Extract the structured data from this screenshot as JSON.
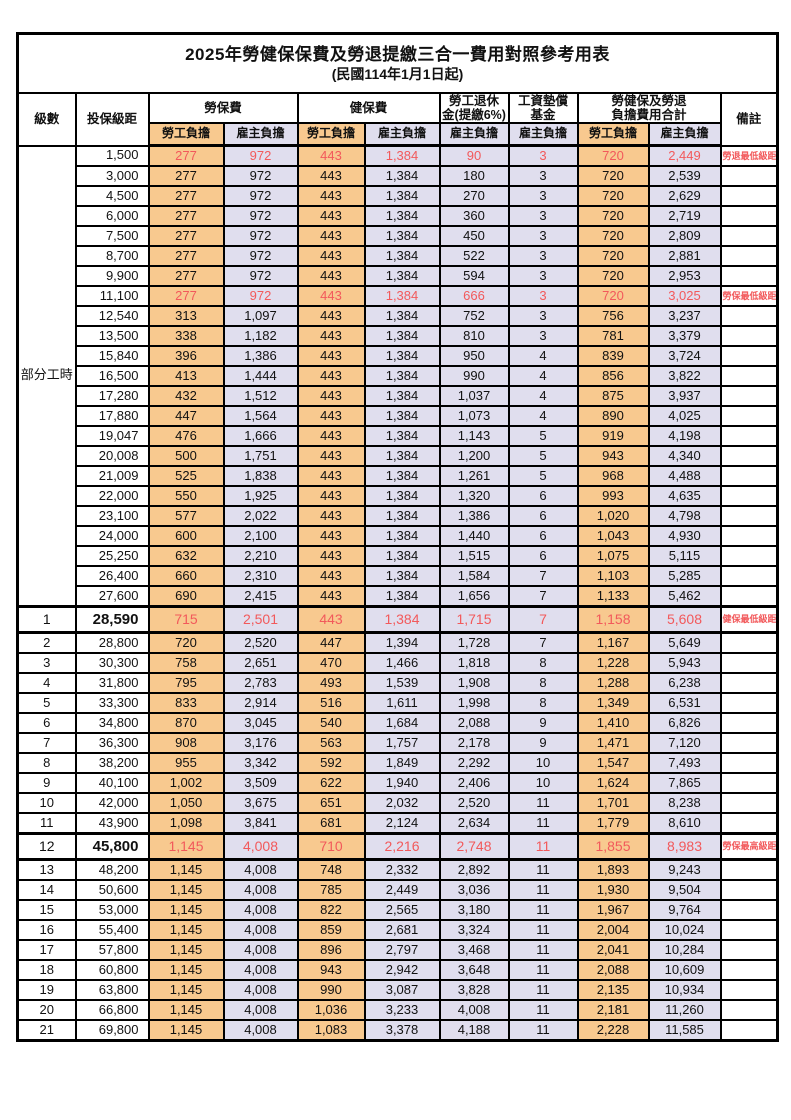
{
  "title": "2025年勞健保保費及勞退提繳三合一費用對照參考用表",
  "subtitle": "(民國114年1月1日起)",
  "columns": {
    "level": "級數",
    "bracket": "投保級距",
    "labor_insurance": "勞保費",
    "health_insurance": "健保費",
    "pension_line1": "勞工退休",
    "pension_line2": "金(提繳6%)",
    "fund_line1": "工資墊償",
    "fund_line2": "基金",
    "total_line1": "勞健保及勞退",
    "total_line2": "負擔費用合計",
    "remark": "備註"
  },
  "sub_columns": {
    "employee": "勞工負擔",
    "employer": "雇主負擔"
  },
  "part_time_label": "部分工時",
  "colors": {
    "employee_share_bg": "#F8C98F",
    "employer_share_bg": "#E0DEEE",
    "highlight_text": "#F2595B",
    "grid": "#000000"
  },
  "rows": [
    {
      "lv": "",
      "br": "1,500",
      "v": [
        "277",
        "972",
        "443",
        "1,384",
        "90",
        "3",
        "720",
        "2,449"
      ],
      "note": "勞退最低級距",
      "red": true,
      "tall": false
    },
    {
      "lv": "",
      "br": "3,000",
      "v": [
        "277",
        "972",
        "443",
        "1,384",
        "180",
        "3",
        "720",
        "2,539"
      ],
      "note": "",
      "red": false,
      "tall": false
    },
    {
      "lv": "",
      "br": "4,500",
      "v": [
        "277",
        "972",
        "443",
        "1,384",
        "270",
        "3",
        "720",
        "2,629"
      ],
      "note": "",
      "red": false,
      "tall": false
    },
    {
      "lv": "",
      "br": "6,000",
      "v": [
        "277",
        "972",
        "443",
        "1,384",
        "360",
        "3",
        "720",
        "2,719"
      ],
      "note": "",
      "red": false,
      "tall": false
    },
    {
      "lv": "",
      "br": "7,500",
      "v": [
        "277",
        "972",
        "443",
        "1,384",
        "450",
        "3",
        "720",
        "2,809"
      ],
      "note": "",
      "red": false,
      "tall": false
    },
    {
      "lv": "",
      "br": "8,700",
      "v": [
        "277",
        "972",
        "443",
        "1,384",
        "522",
        "3",
        "720",
        "2,881"
      ],
      "note": "",
      "red": false,
      "tall": false
    },
    {
      "lv": "",
      "br": "9,900",
      "v": [
        "277",
        "972",
        "443",
        "1,384",
        "594",
        "3",
        "720",
        "2,953"
      ],
      "note": "",
      "red": false,
      "tall": false
    },
    {
      "lv": "",
      "br": "11,100",
      "v": [
        "277",
        "972",
        "443",
        "1,384",
        "666",
        "3",
        "720",
        "3,025"
      ],
      "note": "勞保最低級距",
      "red": true,
      "tall": false
    },
    {
      "lv": "",
      "br": "12,540",
      "v": [
        "313",
        "1,097",
        "443",
        "1,384",
        "752",
        "3",
        "756",
        "3,237"
      ],
      "note": "",
      "red": false,
      "tall": false
    },
    {
      "lv": "",
      "br": "13,500",
      "v": [
        "338",
        "1,182",
        "443",
        "1,384",
        "810",
        "3",
        "781",
        "3,379"
      ],
      "note": "",
      "red": false,
      "tall": false
    },
    {
      "lv": "",
      "br": "15,840",
      "v": [
        "396",
        "1,386",
        "443",
        "1,384",
        "950",
        "4",
        "839",
        "3,724"
      ],
      "note": "",
      "red": false,
      "tall": false
    },
    {
      "lv": "",
      "br": "16,500",
      "v": [
        "413",
        "1,444",
        "443",
        "1,384",
        "990",
        "4",
        "856",
        "3,822"
      ],
      "note": "",
      "red": false,
      "tall": false
    },
    {
      "lv": "",
      "br": "17,280",
      "v": [
        "432",
        "1,512",
        "443",
        "1,384",
        "1,037",
        "4",
        "875",
        "3,937"
      ],
      "note": "",
      "red": false,
      "tall": false
    },
    {
      "lv": "",
      "br": "17,880",
      "v": [
        "447",
        "1,564",
        "443",
        "1,384",
        "1,073",
        "4",
        "890",
        "4,025"
      ],
      "note": "",
      "red": false,
      "tall": false
    },
    {
      "lv": "",
      "br": "19,047",
      "v": [
        "476",
        "1,666",
        "443",
        "1,384",
        "1,143",
        "5",
        "919",
        "4,198"
      ],
      "note": "",
      "red": false,
      "tall": false
    },
    {
      "lv": "",
      "br": "20,008",
      "v": [
        "500",
        "1,751",
        "443",
        "1,384",
        "1,200",
        "5",
        "943",
        "4,340"
      ],
      "note": "",
      "red": false,
      "tall": false
    },
    {
      "lv": "",
      "br": "21,009",
      "v": [
        "525",
        "1,838",
        "443",
        "1,384",
        "1,261",
        "5",
        "968",
        "4,488"
      ],
      "note": "",
      "red": false,
      "tall": false
    },
    {
      "lv": "",
      "br": "22,000",
      "v": [
        "550",
        "1,925",
        "443",
        "1,384",
        "1,320",
        "6",
        "993",
        "4,635"
      ],
      "note": "",
      "red": false,
      "tall": false
    },
    {
      "lv": "",
      "br": "23,100",
      "v": [
        "577",
        "2,022",
        "443",
        "1,384",
        "1,386",
        "6",
        "1,020",
        "4,798"
      ],
      "note": "",
      "red": false,
      "tall": false
    },
    {
      "lv": "",
      "br": "24,000",
      "v": [
        "600",
        "2,100",
        "443",
        "1,384",
        "1,440",
        "6",
        "1,043",
        "4,930"
      ],
      "note": "",
      "red": false,
      "tall": false
    },
    {
      "lv": "",
      "br": "25,250",
      "v": [
        "632",
        "2,210",
        "443",
        "1,384",
        "1,515",
        "6",
        "1,075",
        "5,115"
      ],
      "note": "",
      "red": false,
      "tall": false
    },
    {
      "lv": "",
      "br": "26,400",
      "v": [
        "660",
        "2,310",
        "443",
        "1,384",
        "1,584",
        "7",
        "1,103",
        "5,285"
      ],
      "note": "",
      "red": false,
      "tall": false
    },
    {
      "lv": "",
      "br": "27,600",
      "v": [
        "690",
        "2,415",
        "443",
        "1,384",
        "1,656",
        "7",
        "1,133",
        "5,462"
      ],
      "note": "",
      "red": false,
      "tall": false
    },
    {
      "lv": "1",
      "br": "28,590",
      "v": [
        "715",
        "2,501",
        "443",
        "1,384",
        "1,715",
        "7",
        "1,158",
        "5,608"
      ],
      "note": "健保最低級距",
      "red": true,
      "tall": true
    },
    {
      "lv": "2",
      "br": "28,800",
      "v": [
        "720",
        "2,520",
        "447",
        "1,394",
        "1,728",
        "7",
        "1,167",
        "5,649"
      ],
      "note": "",
      "red": false,
      "tall": false
    },
    {
      "lv": "3",
      "br": "30,300",
      "v": [
        "758",
        "2,651",
        "470",
        "1,466",
        "1,818",
        "8",
        "1,228",
        "5,943"
      ],
      "note": "",
      "red": false,
      "tall": false
    },
    {
      "lv": "4",
      "br": "31,800",
      "v": [
        "795",
        "2,783",
        "493",
        "1,539",
        "1,908",
        "8",
        "1,288",
        "6,238"
      ],
      "note": "",
      "red": false,
      "tall": false
    },
    {
      "lv": "5",
      "br": "33,300",
      "v": [
        "833",
        "2,914",
        "516",
        "1,611",
        "1,998",
        "8",
        "1,349",
        "6,531"
      ],
      "note": "",
      "red": false,
      "tall": false
    },
    {
      "lv": "6",
      "br": "34,800",
      "v": [
        "870",
        "3,045",
        "540",
        "1,684",
        "2,088",
        "9",
        "1,410",
        "6,826"
      ],
      "note": "",
      "red": false,
      "tall": false
    },
    {
      "lv": "7",
      "br": "36,300",
      "v": [
        "908",
        "3,176",
        "563",
        "1,757",
        "2,178",
        "9",
        "1,471",
        "7,120"
      ],
      "note": "",
      "red": false,
      "tall": false
    },
    {
      "lv": "8",
      "br": "38,200",
      "v": [
        "955",
        "3,342",
        "592",
        "1,849",
        "2,292",
        "10",
        "1,547",
        "7,493"
      ],
      "note": "",
      "red": false,
      "tall": false
    },
    {
      "lv": "9",
      "br": "40,100",
      "v": [
        "1,002",
        "3,509",
        "622",
        "1,940",
        "2,406",
        "10",
        "1,624",
        "7,865"
      ],
      "note": "",
      "red": false,
      "tall": false
    },
    {
      "lv": "10",
      "br": "42,000",
      "v": [
        "1,050",
        "3,675",
        "651",
        "2,032",
        "2,520",
        "11",
        "1,701",
        "8,238"
      ],
      "note": "",
      "red": false,
      "tall": false
    },
    {
      "lv": "11",
      "br": "43,900",
      "v": [
        "1,098",
        "3,841",
        "681",
        "2,124",
        "2,634",
        "11",
        "1,779",
        "8,610"
      ],
      "note": "",
      "red": false,
      "tall": false
    },
    {
      "lv": "12",
      "br": "45,800",
      "v": [
        "1,145",
        "4,008",
        "710",
        "2,216",
        "2,748",
        "11",
        "1,855",
        "8,983"
      ],
      "note": "勞保最高級距",
      "red": true,
      "tall": true
    },
    {
      "lv": "13",
      "br": "48,200",
      "v": [
        "1,145",
        "4,008",
        "748",
        "2,332",
        "2,892",
        "11",
        "1,893",
        "9,243"
      ],
      "note": "",
      "red": false,
      "tall": false
    },
    {
      "lv": "14",
      "br": "50,600",
      "v": [
        "1,145",
        "4,008",
        "785",
        "2,449",
        "3,036",
        "11",
        "1,930",
        "9,504"
      ],
      "note": "",
      "red": false,
      "tall": false
    },
    {
      "lv": "15",
      "br": "53,000",
      "v": [
        "1,145",
        "4,008",
        "822",
        "2,565",
        "3,180",
        "11",
        "1,967",
        "9,764"
      ],
      "note": "",
      "red": false,
      "tall": false
    },
    {
      "lv": "16",
      "br": "55,400",
      "v": [
        "1,145",
        "4,008",
        "859",
        "2,681",
        "3,324",
        "11",
        "2,004",
        "10,024"
      ],
      "note": "",
      "red": false,
      "tall": false
    },
    {
      "lv": "17",
      "br": "57,800",
      "v": [
        "1,145",
        "4,008",
        "896",
        "2,797",
        "3,468",
        "11",
        "2,041",
        "10,284"
      ],
      "note": "",
      "red": false,
      "tall": false
    },
    {
      "lv": "18",
      "br": "60,800",
      "v": [
        "1,145",
        "4,008",
        "943",
        "2,942",
        "3,648",
        "11",
        "2,088",
        "10,609"
      ],
      "note": "",
      "red": false,
      "tall": false
    },
    {
      "lv": "19",
      "br": "63,800",
      "v": [
        "1,145",
        "4,008",
        "990",
        "3,087",
        "3,828",
        "11",
        "2,135",
        "10,934"
      ],
      "note": "",
      "red": false,
      "tall": false
    },
    {
      "lv": "20",
      "br": "66,800",
      "v": [
        "1,145",
        "4,008",
        "1,036",
        "3,233",
        "4,008",
        "11",
        "2,181",
        "11,260"
      ],
      "note": "",
      "red": false,
      "tall": false
    },
    {
      "lv": "21",
      "br": "69,800",
      "v": [
        "1,145",
        "4,008",
        "1,083",
        "3,378",
        "4,188",
        "11",
        "2,228",
        "11,585"
      ],
      "note": "",
      "red": false,
      "tall": false
    }
  ]
}
